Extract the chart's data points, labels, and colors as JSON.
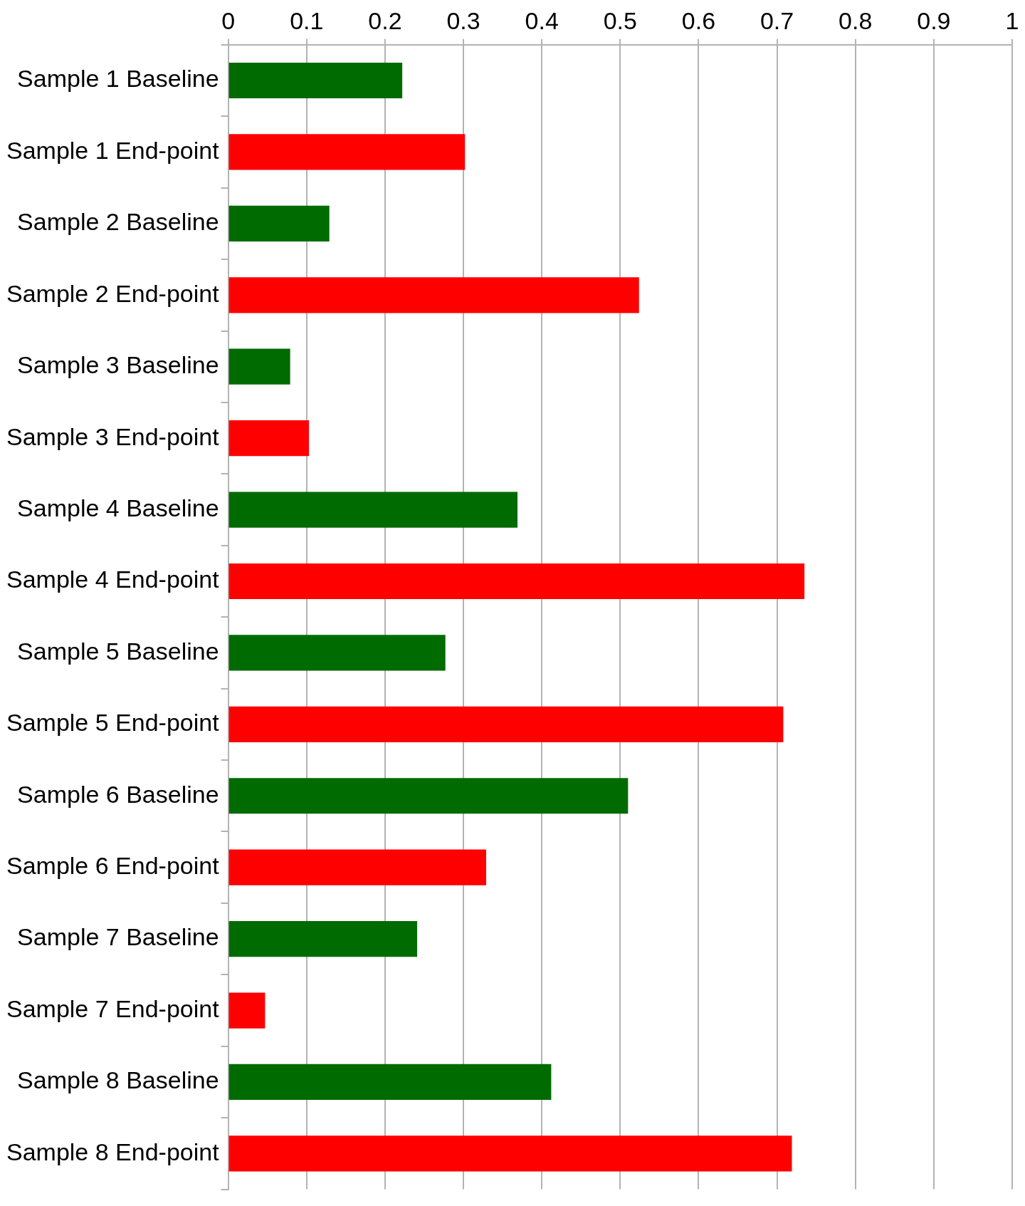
{
  "chart_data": {
    "type": "bar",
    "orientation": "horizontal",
    "categories": [
      "Sample 1 Baseline",
      "Sample 1 End-point",
      "Sample 2 Baseline",
      "Sample 2 End-point",
      "Sample 3 Baseline",
      "Sample 3 End-point",
      "Sample 4 Baseline",
      "Sample 4 End-point",
      "Sample 5 Baseline",
      "Sample 5 End-point",
      "Sample 6 Baseline",
      "Sample 6 End-point",
      "Sample 7 Baseline",
      "Sample 7 End-point",
      "Sample 8 Baseline",
      "Sample 8 End-point"
    ],
    "values": [
      0.222,
      0.302,
      0.129,
      0.524,
      0.079,
      0.103,
      0.369,
      0.735,
      0.277,
      0.708,
      0.51,
      0.329,
      0.241,
      0.047,
      0.412,
      0.719
    ],
    "colors": [
      "#006b00",
      "#ff0000",
      "#006b00",
      "#ff0000",
      "#006b00",
      "#ff0000",
      "#006b00",
      "#ff0000",
      "#006b00",
      "#ff0000",
      "#006b00",
      "#ff0000",
      "#006b00",
      "#ff0000",
      "#006b00",
      "#ff0000"
    ],
    "xlim": [
      0,
      1
    ],
    "xticks": [
      0,
      0.1,
      0.2,
      0.3,
      0.4,
      0.5,
      0.6,
      0.7,
      0.8,
      0.9,
      1
    ],
    "grid": "x"
  }
}
